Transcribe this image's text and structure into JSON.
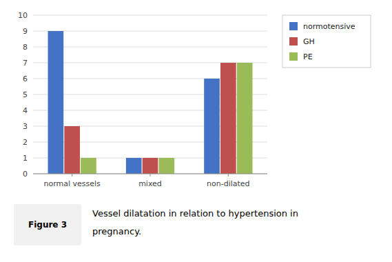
{
  "chart_data": {
    "type": "bar",
    "categories": [
      "normal vessels",
      "mixed",
      "non-dilated"
    ],
    "series": [
      {
        "name": "normotensive",
        "color": "#4472C4",
        "values": [
          9,
          1,
          6
        ]
      },
      {
        "name": "GH",
        "color": "#C0504D",
        "values": [
          3,
          1,
          7
        ]
      },
      {
        "name": "PE",
        "color": "#9BBB59",
        "values": [
          1,
          1,
          7
        ]
      }
    ],
    "ylim": [
      0,
      10
    ],
    "yticks": [
      0,
      1,
      2,
      3,
      4,
      5,
      6,
      7,
      8,
      9,
      10
    ],
    "grid": true,
    "legend": "right",
    "annotations": [
      "Figure 3",
      "Vessel dilatation in relation to hypertension in",
      "pregnancy."
    ]
  }
}
